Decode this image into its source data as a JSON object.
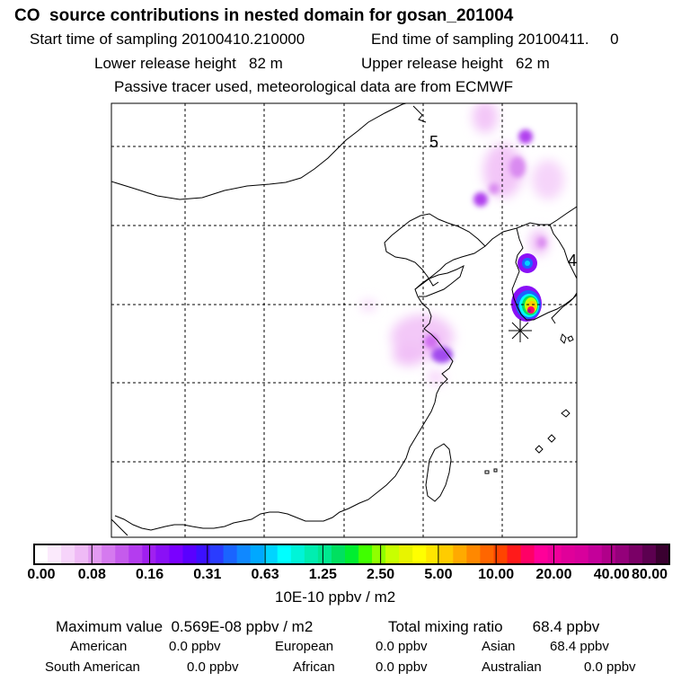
{
  "title": "CO  source contributions in nested domain for gosan_201004",
  "header": {
    "start_time": "Start time of sampling 20100410.210000",
    "end_time": "End time of sampling 20100411.     0",
    "lower_release": "Lower release height   82 m",
    "upper_release": "Upper release height   62 m",
    "tracer_note": "Passive tracer used, meteorological data are from ECMWF"
  },
  "chart_data": {
    "type": "heatmap",
    "map_labels": [
      "5",
      "4"
    ],
    "colorbar": {
      "ticks": [
        "0.00",
        "0.08",
        "0.16",
        "0.31",
        "0.63",
        "1.25",
        "2.50",
        "5.00",
        "10.00",
        "20.00",
        "40.00",
        "80.00"
      ],
      "unit": "10E-10 ppbv / m2",
      "colors": [
        "#ffffff",
        "#fbeafc",
        "#f6d4fa",
        "#efbaf6",
        "#e39af2",
        "#d57aef",
        "#c55bec",
        "#b43cef",
        "#a020f0",
        "#8a10f6",
        "#7a00ff",
        "#5a00ff",
        "#3c10ff",
        "#2a3cff",
        "#1a64ff",
        "#1088ff",
        "#00a8ff",
        "#00d4ff",
        "#00ffff",
        "#00f4d8",
        "#00eeb0",
        "#00e890",
        "#00e060",
        "#00ee30",
        "#40ff00",
        "#90ff00",
        "#c8ff00",
        "#e8f400",
        "#ffff00",
        "#ffe600",
        "#ffcc00",
        "#ffaa00",
        "#ff8800",
        "#ff6600",
        "#ff4400",
        "#ff1a1a",
        "#ff0066",
        "#ff0099",
        "#f0009a",
        "#e0009a",
        "#d8009c",
        "#c4009a",
        "#b0008a",
        "#94007a",
        "#7a0066",
        "#5c0050",
        "#3a0030"
      ]
    },
    "stats": {
      "maximum": "Maximum value  0.569E-08 ppbv / m2",
      "total": "Total mixing ratio       68.4 ppbv"
    },
    "regions": [
      {
        "name": "American",
        "value": "0.0 ppbv"
      },
      {
        "name": "European",
        "value": "0.0 ppbv"
      },
      {
        "name": "Asian",
        "value": "68.4 ppbv"
      },
      {
        "name": "South American",
        "value": "0.0 ppbv"
      },
      {
        "name": "African",
        "value": "0.0 ppbv"
      },
      {
        "name": "Australian",
        "value": "0.0 ppbv"
      }
    ]
  }
}
